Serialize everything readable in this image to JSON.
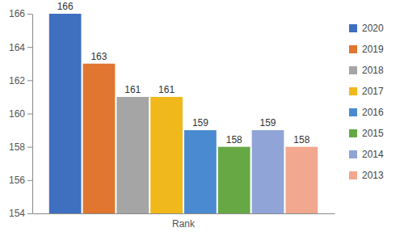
{
  "chart_data": {
    "type": "bar",
    "categories": [
      "Rank"
    ],
    "series": [
      {
        "name": "2020",
        "color": "#3f6fbf",
        "values": [
          166
        ]
      },
      {
        "name": "2019",
        "color": "#e0762f",
        "values": [
          163
        ]
      },
      {
        "name": "2018",
        "color": "#a5a5a5",
        "values": [
          161
        ]
      },
      {
        "name": "2017",
        "color": "#f0b81a",
        "values": [
          161
        ]
      },
      {
        "name": "2016",
        "color": "#4a8ad0",
        "values": [
          159
        ]
      },
      {
        "name": "2015",
        "color": "#66a844",
        "values": [
          158
        ]
      },
      {
        "name": "2014",
        "color": "#90a4d8",
        "values": [
          159
        ]
      },
      {
        "name": "2013",
        "color": "#f2a88e",
        "values": [
          158
        ]
      }
    ],
    "ylim": [
      154,
      166
    ],
    "yticks": [
      154,
      156,
      158,
      160,
      162,
      164,
      166
    ],
    "grid": false,
    "data_labels": true,
    "legend": "right"
  }
}
